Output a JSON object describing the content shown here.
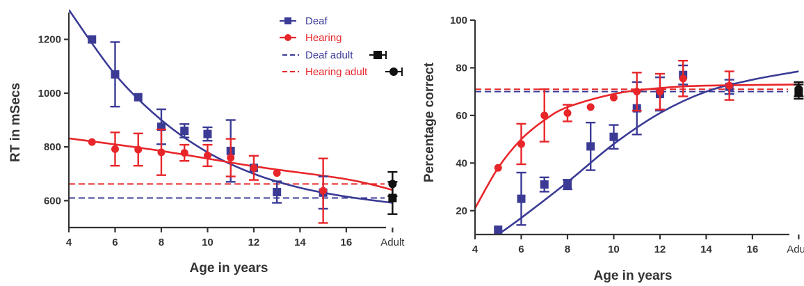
{
  "colors": {
    "deaf": "#3b3b96",
    "hearing": "#e8262a",
    "adult": "#111111",
    "axis": "#333333"
  },
  "chart_data": [
    {
      "type": "scatter",
      "title": "",
      "xlabel": "Age in years",
      "ylabel": "RT in mSecs",
      "xlim": [
        4,
        18.5
      ],
      "ylim": [
        500,
        1300
      ],
      "x_ticks": [
        4,
        6,
        8,
        10,
        12,
        14,
        16
      ],
      "x_extra_tick": {
        "x": 18,
        "label": "Adult"
      },
      "y_ticks": [
        600,
        800,
        1000,
        1200
      ],
      "grid": false,
      "legend_position": "top-right",
      "legend": [
        {
          "label": "Deaf",
          "series": "deaf",
          "kind": "marker"
        },
        {
          "label": "Hearing",
          "series": "hearing",
          "kind": "marker"
        },
        {
          "label": "Deaf adult",
          "series": "deaf",
          "kind": "adult"
        },
        {
          "label": "Hearing adult",
          "series": "hearing",
          "kind": "adult"
        }
      ],
      "series": [
        {
          "key": "deaf",
          "marker": "square",
          "points": [
            {
              "x": 5,
              "y": 1200,
              "err": 0
            },
            {
              "x": 6,
              "y": 1070,
              "err": 120
            },
            {
              "x": 7,
              "y": 985,
              "err": 0
            },
            {
              "x": 8,
              "y": 875,
              "err": 65
            },
            {
              "x": 9,
              "y": 860,
              "err": 25
            },
            {
              "x": 10,
              "y": 848,
              "err": 25
            },
            {
              "x": 11,
              "y": 785,
              "err": 115
            },
            {
              "x": 12,
              "y": 722,
              "err": 0
            },
            {
              "x": 13,
              "y": 632,
              "err": 40
            },
            {
              "x": 15,
              "y": 630,
              "err": 60
            }
          ],
          "fit": [
            [
              4,
              1310
            ],
            [
              6,
              1070
            ],
            [
              8,
              900
            ],
            [
              10,
              780
            ],
            [
              12,
              700
            ],
            [
              14,
              648
            ],
            [
              16,
              615
            ],
            [
              18,
              592
            ]
          ],
          "adult": {
            "y": 610,
            "err": 60
          }
        },
        {
          "key": "hearing",
          "marker": "circle",
          "points": [
            {
              "x": 5,
              "y": 818,
              "err": 0
            },
            {
              "x": 6,
              "y": 792,
              "err": 62
            },
            {
              "x": 7,
              "y": 790,
              "err": 60
            },
            {
              "x": 8,
              "y": 780,
              "err": 85
            },
            {
              "x": 9,
              "y": 778,
              "err": 30
            },
            {
              "x": 10,
              "y": 768,
              "err": 40
            },
            {
              "x": 11,
              "y": 760,
              "err": 70
            },
            {
              "x": 12,
              "y": 722,
              "err": 45
            },
            {
              "x": 13,
              "y": 703,
              "err": 0
            },
            {
              "x": 15,
              "y": 637,
              "err": 120
            }
          ],
          "fit": [
            [
              4,
              832
            ],
            [
              8,
              785
            ],
            [
              12,
              728
            ],
            [
              16,
              680
            ],
            [
              18,
              640
            ]
          ],
          "adult": {
            "y": 662,
            "err": 45
          }
        }
      ]
    },
    {
      "type": "scatter",
      "title": "",
      "xlabel": "Age in years",
      "ylabel": "Percentage correct",
      "xlim": [
        4,
        18.5
      ],
      "ylim": [
        10,
        100
      ],
      "x_ticks": [
        4,
        6,
        8,
        10,
        12,
        14,
        16
      ],
      "x_extra_tick": {
        "x": 18,
        "label": "Adult"
      },
      "y_ticks": [
        20,
        40,
        60,
        80,
        100
      ],
      "grid": false,
      "legend_position": "none",
      "series": [
        {
          "key": "deaf",
          "marker": "square",
          "points": [
            {
              "x": 5,
              "y": 12,
              "err": 0
            },
            {
              "x": 6,
              "y": 25,
              "err": 11
            },
            {
              "x": 7,
              "y": 31,
              "err": 3
            },
            {
              "x": 8,
              "y": 31,
              "err": 2
            },
            {
              "x": 9,
              "y": 47,
              "err": 10
            },
            {
              "x": 10,
              "y": 51,
              "err": 5
            },
            {
              "x": 11,
              "y": 63,
              "err": 11
            },
            {
              "x": 12,
              "y": 69,
              "err": 7
            },
            {
              "x": 13,
              "y": 77,
              "err": 4
            },
            {
              "x": 15,
              "y": 72,
              "err": 3
            }
          ],
          "fit": [
            [
              5,
              10
            ],
            [
              6,
              17
            ],
            [
              8,
              32
            ],
            [
              10,
              48
            ],
            [
              12,
              61
            ],
            [
              14,
              70
            ],
            [
              16,
              75
            ],
            [
              18,
              78.5
            ]
          ],
          "adult": {
            "y": 70,
            "err": 3
          }
        },
        {
          "key": "hearing",
          "marker": "circle",
          "points": [
            {
              "x": 5,
              "y": 38,
              "err": 0
            },
            {
              "x": 6,
              "y": 48,
              "err": 8.5
            },
            {
              "x": 7,
              "y": 60,
              "err": 11
            },
            {
              "x": 8,
              "y": 61,
              "err": 3.5
            },
            {
              "x": 9,
              "y": 63.5,
              "err": 0
            },
            {
              "x": 10,
              "y": 67.5,
              "err": 0
            },
            {
              "x": 11,
              "y": 70,
              "err": 8
            },
            {
              "x": 12,
              "y": 70,
              "err": 7.5
            },
            {
              "x": 13,
              "y": 75.5,
              "err": 7.5
            },
            {
              "x": 15,
              "y": 72.5,
              "err": 6
            }
          ],
          "fit": [
            [
              4,
              21
            ],
            [
              5,
              38
            ],
            [
              6,
              50
            ],
            [
              7,
              58
            ],
            [
              8,
              63.5
            ],
            [
              10,
              69
            ],
            [
              12,
              71.5
            ],
            [
              14,
              72.5
            ],
            [
              18,
              73
            ]
          ],
          "adult": {
            "y": 71,
            "err": 3
          }
        }
      ]
    }
  ]
}
